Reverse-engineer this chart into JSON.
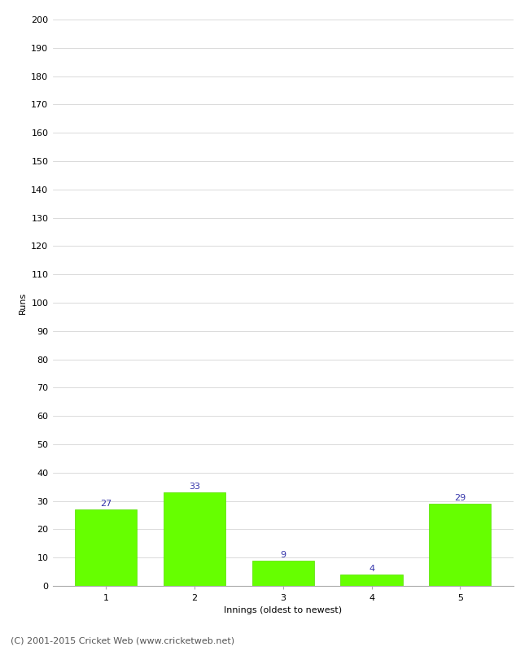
{
  "categories": [
    "1",
    "2",
    "3",
    "4",
    "5"
  ],
  "values": [
    27,
    33,
    9,
    4,
    29
  ],
  "bar_color": "#66ff00",
  "bar_edgecolor": "#55dd00",
  "label_color": "#3333aa",
  "xlabel": "Innings (oldest to newest)",
  "ylabel": "Runs",
  "ylim": [
    0,
    200
  ],
  "yticks": [
    0,
    10,
    20,
    30,
    40,
    50,
    60,
    70,
    80,
    90,
    100,
    110,
    120,
    130,
    140,
    150,
    160,
    170,
    180,
    190,
    200
  ],
  "background_color": "#ffffff",
  "footer": "(C) 2001-2015 Cricket Web (www.cricketweb.net)",
  "label_fontsize": 8,
  "axis_label_fontsize": 8,
  "tick_fontsize": 8,
  "footer_fontsize": 8,
  "grid_color": "#cccccc",
  "spine_color": "#aaaaaa"
}
